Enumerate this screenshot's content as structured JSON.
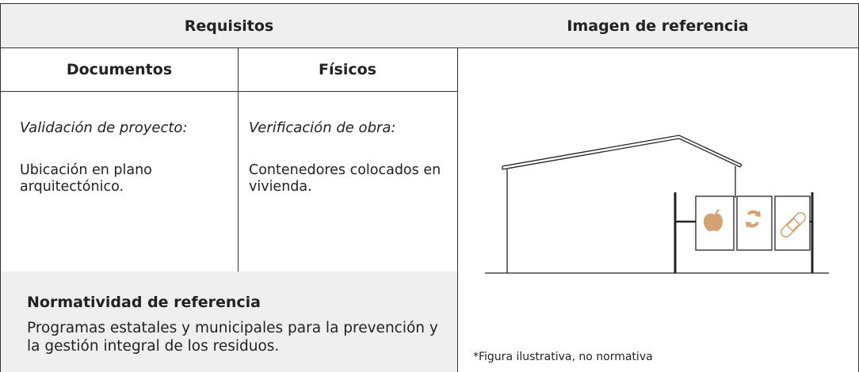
{
  "table": {
    "headers": [
      "Requisitos",
      "Imagen de referencia"
    ],
    "subheaders": [
      "Documentos",
      "Físicos"
    ],
    "columns": [
      {
        "heading": "Validación de proyecto:",
        "text": "Ubicación en plano arquitectónico."
      },
      {
        "heading": "Verificación de obra:",
        "text": "Contenedores colocados en vivienda."
      }
    ],
    "reference": {
      "title": "Normatividad de referencia",
      "text": "Programas estatales y municipales para la prevención y la gestión integral de los residuos."
    },
    "caption": "*Figura ilustrativa, no normativa"
  }
}
